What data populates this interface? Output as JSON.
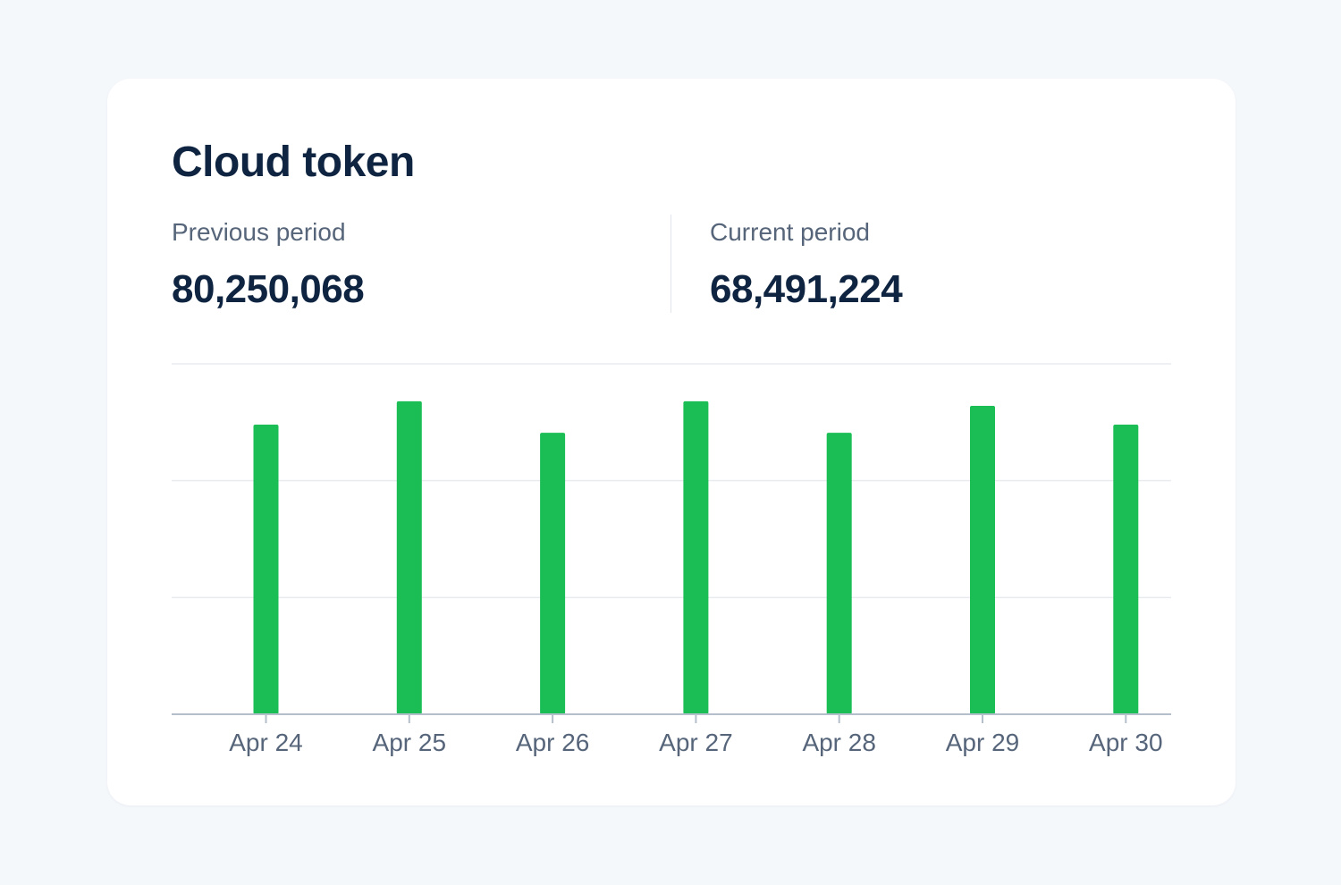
{
  "card": {
    "title": "Cloud token",
    "previous": {
      "label": "Previous period",
      "value": "80,250,068"
    },
    "current": {
      "label": "Current period",
      "value": "68,491,224"
    }
  },
  "colors": {
    "bar": "#1abe55",
    "title": "#0e2440",
    "muted": "#56657a",
    "grid": "#e8ecf0",
    "axis": "#b4bfcb",
    "background": "#f5f8fb",
    "card": "#ffffff"
  },
  "chart_data": {
    "type": "bar",
    "categories": [
      "Apr 24",
      "Apr 25",
      "Apr 26",
      "Apr 27",
      "Apr 28",
      "Apr 29",
      "Apr 30"
    ],
    "values": [
      12.4,
      13.4,
      12.05,
      13.4,
      12.05,
      13.2,
      12.4
    ],
    "ylim": [
      0,
      15
    ],
    "grid": true,
    "legend": "none",
    "xlabel": "",
    "ylabel": ""
  }
}
